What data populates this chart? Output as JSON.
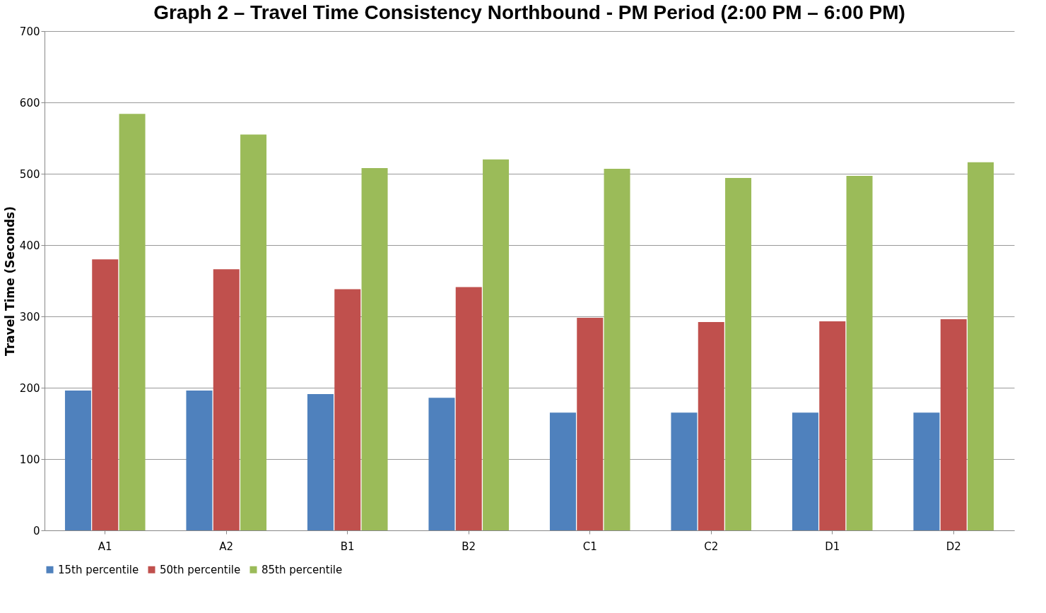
{
  "chart_data": {
    "type": "bar",
    "title": "Graph 2 – Travel Time Consistency Northbound - PM Period (2:00 PM – 6:00 PM)",
    "ylabel": "Travel Time (Seconds)",
    "categories": [
      "A1",
      "A2",
      "B1",
      "B2",
      "C1",
      "C2",
      "D1",
      "D2"
    ],
    "series": [
      {
        "name": "15th percentile",
        "color": "#4f81bd",
        "values": [
          196,
          196,
          191,
          186,
          165,
          165,
          165,
          165
        ]
      },
      {
        "name": "50th percentile",
        "color": "#c0504d",
        "values": [
          380,
          366,
          338,
          341,
          298,
          292,
          293,
          296
        ]
      },
      {
        "name": "85th percentile",
        "color": "#9bbb59",
        "values": [
          584,
          555,
          508,
          520,
          507,
          494,
          497,
          516
        ]
      }
    ],
    "ylim": [
      0,
      700
    ],
    "yticks": [
      0,
      100,
      200,
      300,
      400,
      500,
      600,
      700
    ],
    "grid": "y",
    "legend": "bottom"
  }
}
